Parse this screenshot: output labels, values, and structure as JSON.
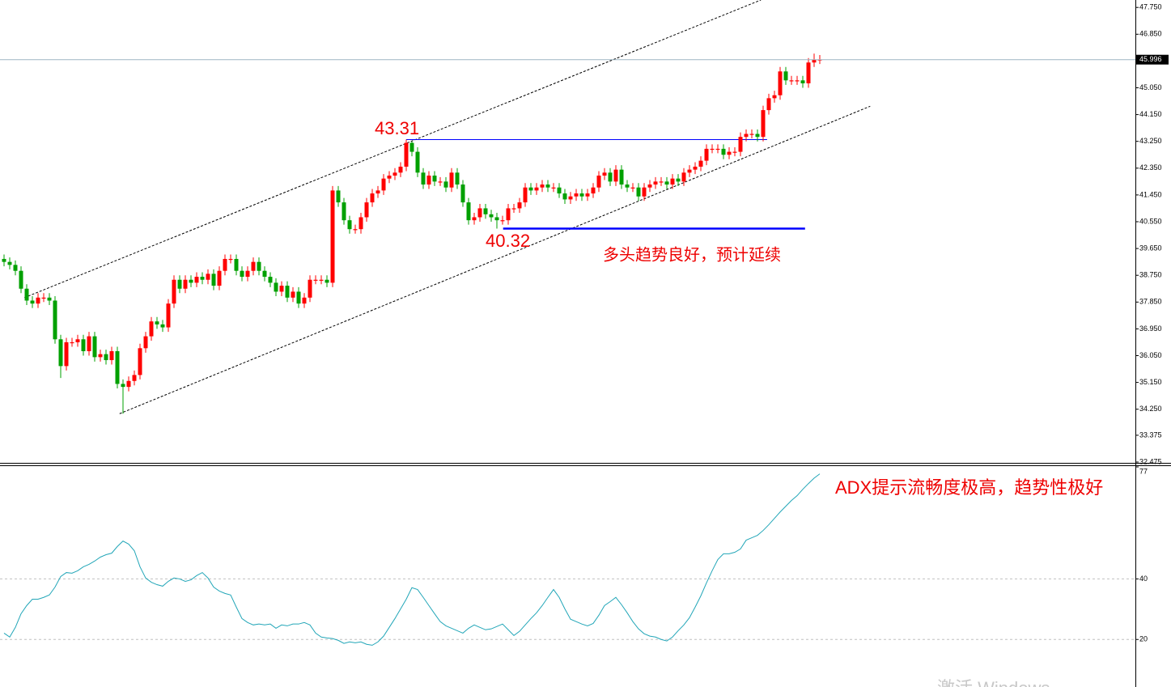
{
  "chart_data": [
    {
      "type": "candlestick",
      "open": [
        39.3,
        39.2,
        39.1,
        38.9,
        38.3,
        37.9,
        37.8,
        38.0,
        38.0,
        37.9,
        36.6,
        35.7,
        36.5,
        36.5,
        36.6,
        36.2,
        36.7,
        36.0,
        36.1,
        35.9,
        36.2,
        35.1,
        35.0,
        35.2,
        35.4,
        36.3,
        36.7,
        37.2,
        37.1,
        37.0,
        37.8,
        38.6,
        38.3,
        38.6,
        38.5,
        38.7,
        38.6,
        38.8,
        38.4,
        38.9,
        39.3,
        39.3,
        38.9,
        38.7,
        38.9,
        39.2,
        38.9,
        38.7,
        38.5,
        38.2,
        38.4,
        38.0,
        38.2,
        37.8,
        38.0,
        38.6,
        38.6,
        38.6,
        38.5,
        41.6,
        41.2,
        40.6,
        40.3,
        40.3,
        40.7,
        41.2,
        41.5,
        41.6,
        42.0,
        42.1,
        42.2,
        42.4,
        43.2,
        42.9,
        42.2,
        41.8,
        42.1,
        41.9,
        41.9,
        41.7,
        42.2,
        41.8,
        41.2,
        40.6,
        40.7,
        41.0,
        40.8,
        40.7,
        40.6,
        40.6,
        41.0,
        41.0,
        41.2,
        41.7,
        41.6,
        41.7,
        41.8,
        41.7,
        41.7,
        41.5,
        41.3,
        41.4,
        41.5,
        41.4,
        41.5,
        41.7,
        42.1,
        42.2,
        41.9,
        42.3,
        41.8,
        41.7,
        41.7,
        41.4,
        41.7,
        41.8,
        41.9,
        41.9,
        41.8,
        42.0,
        41.9,
        42.2,
        42.3,
        42.4,
        42.6,
        43.0,
        43.0,
        43.0,
        42.8,
        42.9,
        42.9,
        43.4,
        43.5,
        43.5,
        43.4,
        44.3,
        44.7,
        44.8,
        45.6,
        45.3,
        45.3,
        45.3,
        45.2,
        45.9,
        46.0
      ],
      "high": [
        39.45,
        39.35,
        39.25,
        39.05,
        38.45,
        38.05,
        38.15,
        38.15,
        38.15,
        38.05,
        36.75,
        36.65,
        36.65,
        36.75,
        36.75,
        36.85,
        36.85,
        36.25,
        36.25,
        36.35,
        36.35,
        35.25,
        35.35,
        35.55,
        36.45,
        36.85,
        37.35,
        37.35,
        37.25,
        37.95,
        38.75,
        38.75,
        38.75,
        38.75,
        38.85,
        38.85,
        38.95,
        38.95,
        39.05,
        39.45,
        39.45,
        39.45,
        39.05,
        39.05,
        39.35,
        39.35,
        39.05,
        38.85,
        38.65,
        38.55,
        38.55,
        38.35,
        38.35,
        38.15,
        38.75,
        38.75,
        38.75,
        38.75,
        41.75,
        41.75,
        41.35,
        40.75,
        40.45,
        40.85,
        41.35,
        41.65,
        41.75,
        42.15,
        42.25,
        42.35,
        42.55,
        43.31,
        43.25,
        43.05,
        42.35,
        42.25,
        42.25,
        42.05,
        42.05,
        42.35,
        42.35,
        41.95,
        41.35,
        40.85,
        41.15,
        41.15,
        40.95,
        40.85,
        40.75,
        41.15,
        41.15,
        41.35,
        41.85,
        41.85,
        41.85,
        41.95,
        41.95,
        41.85,
        41.85,
        41.65,
        41.55,
        41.65,
        41.65,
        41.65,
        41.85,
        42.25,
        42.35,
        42.35,
        42.45,
        42.45,
        41.95,
        41.85,
        41.85,
        41.85,
        41.95,
        42.05,
        42.05,
        42.05,
        42.15,
        42.15,
        42.35,
        42.45,
        42.55,
        42.75,
        43.15,
        43.15,
        43.15,
        43.15,
        43.05,
        43.05,
        43.55,
        43.65,
        43.65,
        43.65,
        44.45,
        44.85,
        44.95,
        45.75,
        45.75,
        45.45,
        45.45,
        45.45,
        46.05,
        46.2,
        46.15
      ],
      "low": [
        39.05,
        38.95,
        38.75,
        38.15,
        37.75,
        37.65,
        37.65,
        37.85,
        37.75,
        36.45,
        35.3,
        35.55,
        36.35,
        36.35,
        36.05,
        36.05,
        35.85,
        35.85,
        35.75,
        35.75,
        34.95,
        34.1,
        34.85,
        35.05,
        35.25,
        36.15,
        36.55,
        36.95,
        36.85,
        36.85,
        37.65,
        38.15,
        38.15,
        38.35,
        38.35,
        38.45,
        38.45,
        38.25,
        38.25,
        38.75,
        39.15,
        38.75,
        38.55,
        38.55,
        38.75,
        38.75,
        38.55,
        38.35,
        38.05,
        38.05,
        37.85,
        37.85,
        37.65,
        37.65,
        37.85,
        38.45,
        38.45,
        38.35,
        38.35,
        41.05,
        40.45,
        40.15,
        40.15,
        40.15,
        40.55,
        41.05,
        41.35,
        41.45,
        41.85,
        41.95,
        42.05,
        42.25,
        42.75,
        42.05,
        41.65,
        41.65,
        41.75,
        41.75,
        41.55,
        41.55,
        41.65,
        41.05,
        40.45,
        40.45,
        40.55,
        40.65,
        40.55,
        40.32,
        40.45,
        40.45,
        40.85,
        40.85,
        41.05,
        41.45,
        41.45,
        41.55,
        41.55,
        41.55,
        41.35,
        41.15,
        41.15,
        41.25,
        41.25,
        41.25,
        41.35,
        41.55,
        41.95,
        41.75,
        41.75,
        41.65,
        41.55,
        41.55,
        41.25,
        41.25,
        41.55,
        41.65,
        41.75,
        41.65,
        41.65,
        41.75,
        41.75,
        42.05,
        42.15,
        42.25,
        42.45,
        42.85,
        42.85,
        42.65,
        42.65,
        42.75,
        42.75,
        43.25,
        43.35,
        43.25,
        43.25,
        44.15,
        44.55,
        44.65,
        45.15,
        45.15,
        45.15,
        45.05,
        45.05,
        45.75,
        45.85
      ],
      "close": [
        39.2,
        39.1,
        38.9,
        38.3,
        37.9,
        37.8,
        38.0,
        38.0,
        37.9,
        36.6,
        35.7,
        36.5,
        36.5,
        36.6,
        36.2,
        36.7,
        36.0,
        36.1,
        35.9,
        36.2,
        35.1,
        35.0,
        35.2,
        35.4,
        36.3,
        36.7,
        37.2,
        37.1,
        37.0,
        37.8,
        38.6,
        38.3,
        38.6,
        38.5,
        38.7,
        38.6,
        38.8,
        38.4,
        38.9,
        39.3,
        39.3,
        38.9,
        38.7,
        38.9,
        39.2,
        38.9,
        38.7,
        38.5,
        38.2,
        38.4,
        38.0,
        38.2,
        37.8,
        38.0,
        38.6,
        38.6,
        38.6,
        38.5,
        41.6,
        41.2,
        40.6,
        40.3,
        40.3,
        40.7,
        41.2,
        41.5,
        41.6,
        42.0,
        42.1,
        42.2,
        42.4,
        43.2,
        42.9,
        42.2,
        41.8,
        42.1,
        41.9,
        41.9,
        41.7,
        42.2,
        41.8,
        41.2,
        40.6,
        40.7,
        41.0,
        40.8,
        40.7,
        40.6,
        40.6,
        41.0,
        41.0,
        41.2,
        41.7,
        41.6,
        41.7,
        41.8,
        41.7,
        41.7,
        41.5,
        41.3,
        41.4,
        41.5,
        41.4,
        41.5,
        41.7,
        42.1,
        42.2,
        41.9,
        42.3,
        41.8,
        41.7,
        41.7,
        41.4,
        41.7,
        41.8,
        41.9,
        41.9,
        41.8,
        42.0,
        41.9,
        42.2,
        42.3,
        42.4,
        42.6,
        43.0,
        43.0,
        43.0,
        42.8,
        42.9,
        42.9,
        43.4,
        43.5,
        43.5,
        43.4,
        44.3,
        44.7,
        44.8,
        45.6,
        45.3,
        45.3,
        45.3,
        45.2,
        45.9,
        46.0,
        46.0
      ],
      "up_color": "#ff0000",
      "down_color": "#00a000",
      "ylim": [
        32.475,
        48.0
      ],
      "yticks": [
        {
          "value": 47.75,
          "label": "47.750"
        },
        {
          "value": 46.85,
          "label": "46.850"
        },
        {
          "value": 45.05,
          "label": "45.050"
        },
        {
          "value": 44.15,
          "label": "44.150"
        },
        {
          "value": 43.25,
          "label": "43.250"
        },
        {
          "value": 42.35,
          "label": "42.350"
        },
        {
          "value": 41.45,
          "label": "41.450"
        },
        {
          "value": 40.55,
          "label": "40.550"
        },
        {
          "value": 39.65,
          "label": "39.650"
        },
        {
          "value": 38.75,
          "label": "38.750"
        },
        {
          "value": 37.85,
          "label": "37.850"
        },
        {
          "value": 36.95,
          "label": "36.950"
        },
        {
          "value": 36.05,
          "label": "36.050"
        },
        {
          "value": 35.15,
          "label": "35.150"
        },
        {
          "value": 34.25,
          "label": "34.250"
        },
        {
          "value": 33.375,
          "label": "33.375"
        },
        {
          "value": 32.475,
          "label": "32.475"
        }
      ],
      "last_price": {
        "value": 45.996,
        "label": "45.996"
      },
      "lines": [
        {
          "x": [
            3.6,
            133.6
          ],
          "y": [
            38.0,
            48.0
          ],
          "color": "#000000",
          "dashed": true
        },
        {
          "x": [
            20.4,
            152.9
          ],
          "y": [
            34.1,
            44.43
          ],
          "color": "#000000",
          "dashed": true
        },
        {
          "x": [
            71,
            134.7
          ],
          "y": [
            43.31,
            43.31
          ],
          "color": "#0000ff",
          "dashed": false
        },
        {
          "x": [
            88.1,
            141.4
          ],
          "y": [
            40.32,
            40.32
          ],
          "color": "#0000ff",
          "dashed": false
        }
      ],
      "annotations": [
        "43.31",
        "40.32",
        "多头趋势良好，预计延续"
      ],
      "annotation_color": "#ee0000"
    },
    {
      "type": "line",
      "values": [
        22.1,
        20.8,
        24,
        28.5,
        31.2,
        33.3,
        33.3,
        33.9,
        34.7,
        37.3,
        40.8,
        42.1,
        41.9,
        42.7,
        44,
        44.8,
        45.9,
        47.2,
        48,
        48.5,
        50.7,
        52.5,
        51.5,
        49.3,
        44,
        40.3,
        38.9,
        38.1,
        37.6,
        39.2,
        40.3,
        40,
        39.2,
        39.7,
        41.1,
        42.1,
        40.3,
        37.3,
        36,
        35.2,
        34.7,
        30.7,
        26.9,
        25.6,
        24.8,
        25.1,
        24.8,
        25.1,
        23.7,
        24.8,
        24.5,
        25.1,
        25.1,
        25.6,
        24.8,
        22.1,
        20.8,
        20.5,
        20.3,
        19.7,
        18.7,
        19.2,
        18.9,
        19.2,
        18.4,
        18.1,
        19.2,
        21.1,
        24,
        26.9,
        30.1,
        33.3,
        37.1,
        36.5,
        33.9,
        31.2,
        28.5,
        25.9,
        24.5,
        23.7,
        22.9,
        22.1,
        23.7,
        24.8,
        24,
        23.2,
        23.5,
        24.3,
        25.1,
        23.2,
        21.3,
        22.7,
        24.8,
        26.9,
        28.8,
        31.2,
        33.9,
        36.5,
        33.9,
        30.1,
        26.7,
        25.9,
        25.1,
        24.5,
        25.3,
        28,
        31.2,
        32.5,
        33.9,
        31.5,
        28.8,
        25.9,
        23.5,
        21.9,
        21.1,
        20.8,
        20,
        19.5,
        20.8,
        22.9,
        24.8,
        27.2,
        30.7,
        34.4,
        38.7,
        42.7,
        46.4,
        48.3,
        48.3,
        48.8,
        49.9,
        52.8,
        53.6,
        54.4,
        56,
        57.9,
        60,
        62.1,
        64,
        65.9,
        67.5,
        69.6,
        71.5,
        73.3,
        74.7
      ],
      "color": "#22a6b8",
      "ylim": [
        4.3,
        77
      ],
      "yticks": [
        77,
        40,
        20
      ],
      "grid": true,
      "annotation": "ADX提示流畅度极高，趋势性极好",
      "annotation_color": "#ee0000"
    }
  ],
  "watermark": "激活 Windows"
}
